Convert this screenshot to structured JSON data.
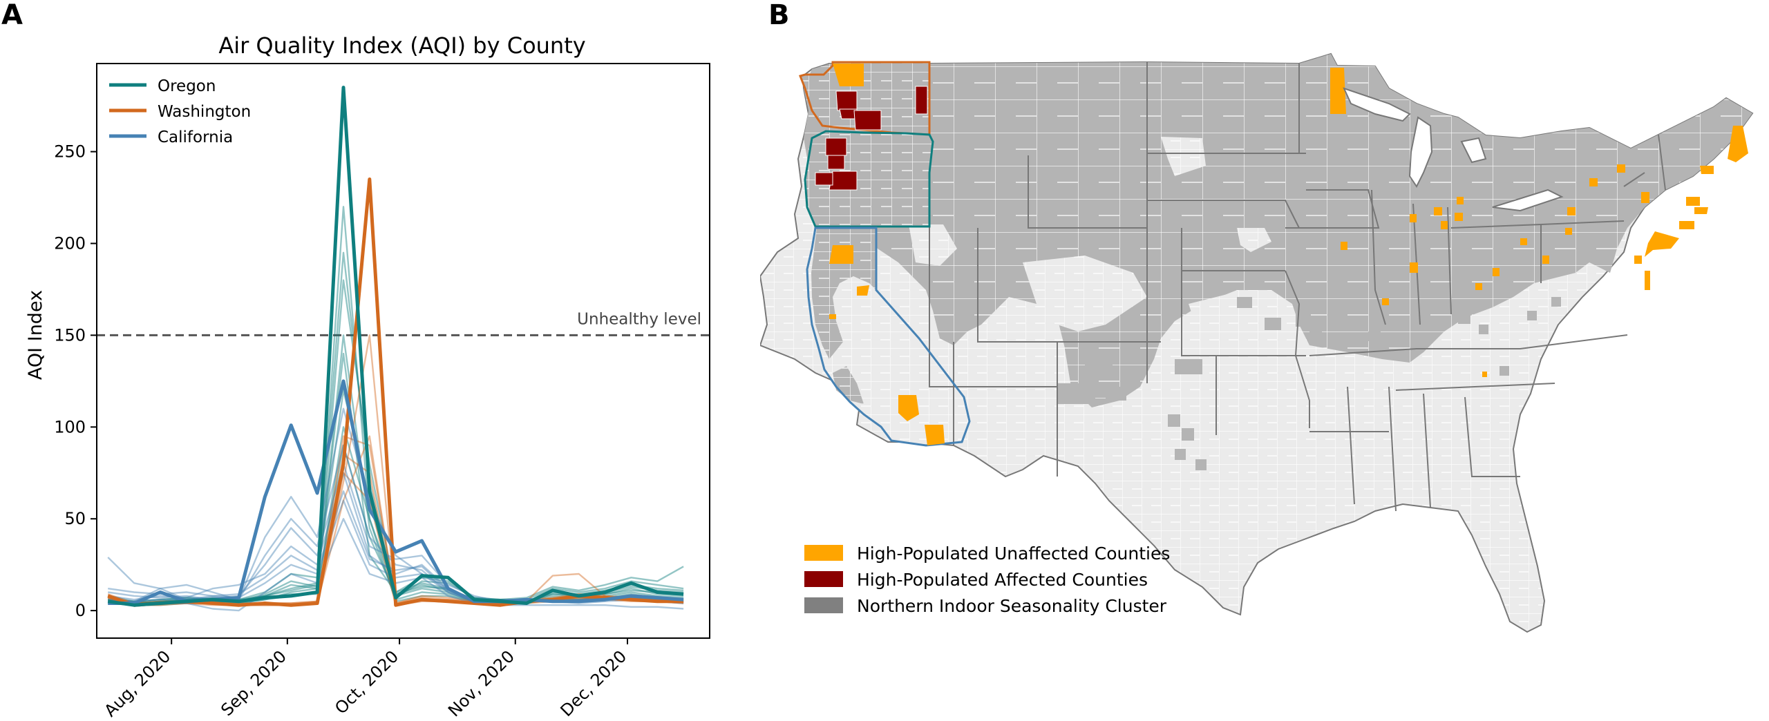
{
  "panel_a": {
    "label": "A",
    "chart_data": {
      "type": "line",
      "title": "Air Quality Index (AQI) by County",
      "xlabel": "",
      "ylabel": "AQI Index",
      "xlim": [
        "2020-07-12",
        "2020-12-23"
      ],
      "ylim": [
        -15,
        298
      ],
      "y_ticks": [
        0,
        50,
        100,
        150,
        200,
        250
      ],
      "x_ticks": [
        {
          "date": "2020-08-01",
          "label": "Aug, 2020"
        },
        {
          "date": "2020-09-01",
          "label": "Sep, 2020"
        },
        {
          "date": "2020-10-01",
          "label": "Oct, 2020"
        },
        {
          "date": "2020-11-01",
          "label": "Nov, 2020"
        },
        {
          "date": "2020-12-01",
          "label": "Dec, 2020"
        }
      ],
      "x_dates": [
        "2020-07-15",
        "2020-07-22",
        "2020-07-29",
        "2020-08-05",
        "2020-08-12",
        "2020-08-19",
        "2020-08-26",
        "2020-09-02",
        "2020-09-09",
        "2020-09-16",
        "2020-09-23",
        "2020-09-30",
        "2020-10-07",
        "2020-10-14",
        "2020-10-21",
        "2020-10-28",
        "2020-11-04",
        "2020-11-11",
        "2020-11-18",
        "2020-11-25",
        "2020-12-02",
        "2020-12-09",
        "2020-12-16"
      ],
      "legend_position": "top-left",
      "grid": false,
      "colors": {
        "Oregon": "#0f7f7f",
        "Washington": "#d2691e",
        "California": "#4682b4"
      },
      "reference_line": {
        "y": 150,
        "label": "Unhealthy level",
        "color": "#555555"
      },
      "series": [
        {
          "name": "Oregon",
          "emphasis": true,
          "color": "#0f7f7f",
          "values": [
            5,
            3,
            4,
            5,
            6,
            5,
            7,
            8,
            10,
            285,
            65,
            7,
            19,
            18,
            6,
            5,
            4,
            11,
            8,
            10,
            15,
            10,
            9
          ]
        },
        {
          "name": "Washington",
          "emphasis": true,
          "color": "#d2691e",
          "values": [
            8,
            3,
            4,
            5,
            4,
            3,
            4,
            3,
            4,
            80,
            235,
            3,
            6,
            5,
            4,
            3,
            5,
            6,
            8,
            7,
            6,
            5,
            5
          ]
        },
        {
          "name": "California",
          "emphasis": true,
          "color": "#4682b4",
          "values": [
            4,
            4,
            10,
            5,
            6,
            7,
            62,
            101,
            64,
            125,
            55,
            32,
            38,
            12,
            5,
            5,
            6,
            5,
            5,
            6,
            8,
            7,
            6
          ]
        },
        {
          "group": "Oregon",
          "values": [
            6,
            4,
            5,
            6,
            5,
            4,
            6,
            10,
            12,
            220,
            50,
            10,
            15,
            12,
            6,
            6,
            5,
            8,
            7,
            9,
            12,
            9,
            8
          ]
        },
        {
          "group": "Oregon",
          "values": [
            5,
            5,
            4,
            5,
            6,
            6,
            8,
            12,
            15,
            195,
            70,
            8,
            12,
            10,
            5,
            5,
            4,
            7,
            6,
            8,
            10,
            8,
            7
          ]
        },
        {
          "group": "Oregon",
          "values": [
            4,
            3,
            3,
            4,
            5,
            5,
            7,
            9,
            9,
            180,
            80,
            9,
            14,
            11,
            6,
            5,
            5,
            9,
            8,
            9,
            11,
            10,
            9
          ]
        },
        {
          "group": "Oregon",
          "values": [
            6,
            5,
            6,
            7,
            6,
            5,
            9,
            16,
            13,
            150,
            45,
            6,
            10,
            9,
            5,
            6,
            5,
            10,
            9,
            11,
            14,
            12,
            11
          ]
        },
        {
          "group": "Oregon",
          "values": [
            7,
            4,
            5,
            6,
            7,
            6,
            10,
            20,
            18,
            120,
            60,
            7,
            16,
            15,
            7,
            6,
            6,
            12,
            10,
            12,
            16,
            14,
            12
          ]
        },
        {
          "group": "Oregon",
          "values": [
            5,
            4,
            4,
            5,
            5,
            4,
            6,
            8,
            10,
            100,
            50,
            5,
            8,
            8,
            5,
            4,
            4,
            6,
            6,
            7,
            9,
            7,
            6
          ]
        },
        {
          "group": "Oregon",
          "values": [
            6,
            4,
            5,
            6,
            6,
            5,
            8,
            14,
            12,
            90,
            40,
            9,
            13,
            12,
            6,
            5,
            5,
            9,
            8,
            10,
            13,
            11,
            10
          ]
        },
        {
          "group": "Oregon",
          "values": [
            8,
            5,
            6,
            7,
            6,
            5,
            8,
            11,
            14,
            140,
            30,
            10,
            18,
            16,
            7,
            6,
            7,
            13,
            11,
            14,
            18,
            16,
            24
          ]
        },
        {
          "group": "Washington",
          "values": [
            9,
            4,
            5,
            5,
            4,
            3,
            4,
            4,
            5,
            95,
            90,
            4,
            8,
            7,
            5,
            4,
            6,
            7,
            9,
            8,
            7,
            6,
            5
          ]
        },
        {
          "group": "Washington",
          "values": [
            7,
            3,
            4,
            4,
            4,
            3,
            3,
            3,
            4,
            70,
            150,
            3,
            6,
            6,
            4,
            3,
            5,
            6,
            7,
            6,
            6,
            5,
            4
          ]
        },
        {
          "group": "Washington",
          "values": [
            6,
            3,
            3,
            4,
            3,
            3,
            3,
            3,
            4,
            60,
            95,
            3,
            5,
            5,
            4,
            3,
            4,
            5,
            6,
            6,
            5,
            5,
            4
          ]
        },
        {
          "group": "Washington",
          "values": [
            8,
            4,
            4,
            5,
            4,
            4,
            4,
            4,
            5,
            85,
            75,
            4,
            7,
            6,
            5,
            4,
            5,
            19,
            20,
            8,
            7,
            6,
            6
          ]
        },
        {
          "group": "Washington",
          "values": [
            7,
            3,
            4,
            4,
            4,
            3,
            3,
            3,
            4,
            75,
            60,
            3,
            6,
            5,
            4,
            3,
            5,
            6,
            7,
            7,
            6,
            5,
            5
          ]
        },
        {
          "group": "California",
          "values": [
            29,
            15,
            12,
            14,
            10,
            6,
            40,
            62,
            40,
            110,
            60,
            30,
            20,
            12,
            6,
            5,
            6,
            5,
            6,
            7,
            8,
            7,
            6
          ]
        },
        {
          "group": "California",
          "values": [
            10,
            8,
            7,
            8,
            6,
            6,
            30,
            50,
            35,
            90,
            40,
            25,
            22,
            10,
            5,
            5,
            5,
            6,
            5,
            6,
            7,
            6,
            5
          ]
        },
        {
          "group": "California",
          "values": [
            5,
            5,
            12,
            6,
            7,
            8,
            25,
            45,
            30,
            80,
            35,
            28,
            30,
            14,
            8,
            5,
            6,
            6,
            5,
            6,
            7,
            6,
            5
          ]
        },
        {
          "group": "California",
          "values": [
            8,
            6,
            8,
            7,
            12,
            14,
            20,
            35,
            25,
            75,
            30,
            20,
            25,
            12,
            6,
            5,
            5,
            5,
            5,
            6,
            7,
            6,
            5
          ]
        },
        {
          "group": "California",
          "values": [
            12,
            10,
            9,
            10,
            8,
            7,
            15,
            25,
            20,
            60,
            25,
            18,
            20,
            10,
            5,
            4,
            5,
            5,
            4,
            5,
            6,
            5,
            4
          ]
        },
        {
          "group": "California",
          "values": [
            4,
            3,
            4,
            4,
            1,
            0,
            10,
            20,
            15,
            50,
            20,
            15,
            18,
            8,
            4,
            3,
            3,
            3,
            3,
            3,
            2,
            2,
            1
          ]
        },
        {
          "group": "California",
          "values": [
            6,
            5,
            6,
            6,
            8,
            9,
            18,
            30,
            22,
            65,
            28,
            22,
            24,
            11,
            6,
            5,
            6,
            5,
            5,
            6,
            6,
            5,
            5
          ]
        }
      ]
    }
  },
  "panel_b": {
    "label": "B",
    "map": {
      "title": "",
      "highlight_states": [
        "Oregon",
        "Washington",
        "California"
      ],
      "colors": {
        "unaffected": "#FFA500",
        "affected": "#8B0000",
        "northern_cluster": "#808080",
        "northern_fill": "#b4b4b4",
        "background_county": "#ebebeb",
        "state_border": "#777777",
        "county_border": "#ffffff"
      },
      "legend": [
        {
          "label": "High-Populated Unaffected Counties",
          "color": "#FFA500"
        },
        {
          "label": "High-Populated Affected Counties",
          "color": "#8B0000"
        },
        {
          "label": "Northern Indoor Seasonality Cluster",
          "color": "#808080"
        }
      ]
    }
  }
}
